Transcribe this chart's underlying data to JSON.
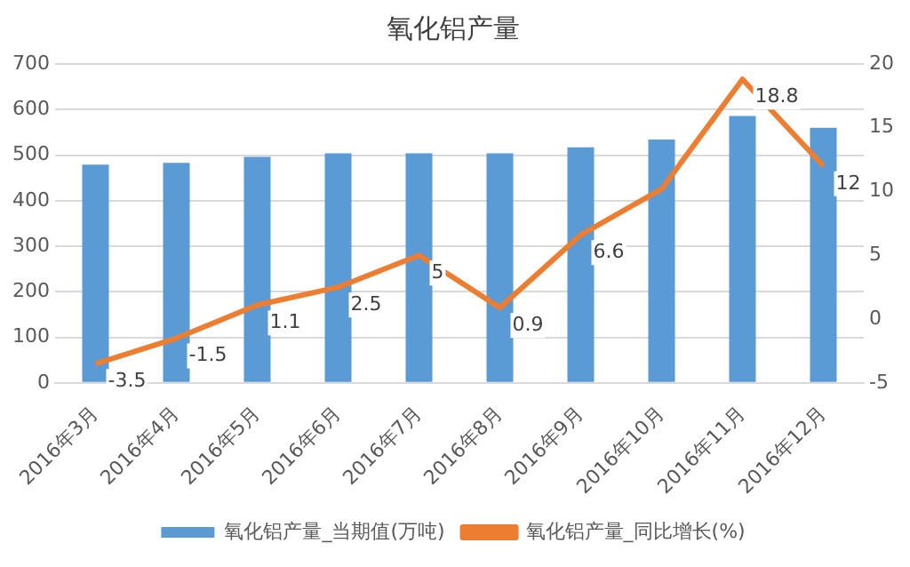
{
  "chart_data": {
    "type": "bar",
    "title": "氧化铝产量",
    "categories": [
      "2016年3月",
      "2016年4月",
      "2016年5月",
      "2016年6月",
      "2016年7月",
      "2016年8月",
      "2016年9月",
      "2016年10月",
      "2016年11月",
      "2016年12月"
    ],
    "series": [
      {
        "name": "氧化铝产量_当期值(万吨)",
        "color": "#5b9bd5",
        "values": [
          479,
          483,
          496,
          504,
          504,
          504,
          517,
          534,
          586,
          560
        ]
      },
      {
        "name": "氧化铝产量_同比增长(%)",
        "type": "line",
        "axis": "y2",
        "color": "#ed7d31",
        "values": [
          -3.5,
          -1.5,
          1.1,
          2.5,
          5,
          0.9,
          6.6,
          10.2,
          18.8,
          12
        ],
        "value_labels": [
          "-3.5",
          "-1.5",
          "1.1",
          "2.5",
          "5",
          "0.9",
          "6.6",
          null,
          "18.8",
          "12"
        ]
      }
    ],
    "ylim": [
      0,
      700
    ],
    "yticks": [
      0,
      100,
      200,
      300,
      400,
      500,
      600,
      700
    ],
    "y2lim": [
      -5,
      20
    ],
    "y2ticks": [
      -5,
      0,
      5,
      10,
      15,
      20
    ],
    "grid": "y",
    "legend": "bottom",
    "marker": "none"
  }
}
